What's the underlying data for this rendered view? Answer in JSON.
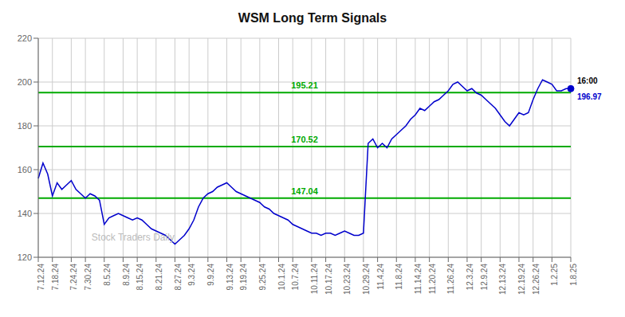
{
  "chart_data": {
    "type": "line",
    "title": "WSM Long Term Signals",
    "categories": [
      "7.12.24",
      null,
      null,
      "7.18.24",
      null,
      null,
      null,
      "7.24.24",
      null,
      null,
      "7.30.24",
      null,
      null,
      null,
      "8.5.24",
      null,
      null,
      null,
      "8.9.24",
      null,
      null,
      "8.15.24",
      null,
      null,
      null,
      "8.21.24",
      null,
      null,
      null,
      "8.27.24",
      null,
      null,
      "9.3.24",
      null,
      null,
      null,
      "9.9.24",
      null,
      null,
      null,
      "9.13.24",
      null,
      null,
      "9.19.24",
      null,
      null,
      null,
      "9.25.24",
      null,
      null,
      null,
      "10.1.24",
      null,
      null,
      "10.7.24",
      null,
      null,
      null,
      "10.11.24",
      null,
      null,
      "10.17.24",
      null,
      null,
      null,
      "10.23.24",
      null,
      null,
      null,
      "10.29.24",
      null,
      null,
      "11.4.24",
      null,
      null,
      null,
      "11.8.24",
      null,
      null,
      null,
      "11.14.24",
      null,
      null,
      "11.20.24",
      null,
      null,
      null,
      "11.26.24",
      null,
      null,
      null,
      "12.3.24",
      null,
      null,
      "12.9.24",
      null,
      null,
      null,
      "12.13.24",
      null,
      null,
      null,
      "12.19.24",
      null,
      null,
      "12.26.24",
      null,
      null,
      null,
      "1.2.25",
      null,
      null,
      null,
      "1.8.25"
    ],
    "series": [
      {
        "name": "WSM",
        "color": "#0000cc",
        "values": [
          156,
          163,
          158,
          148,
          154,
          151,
          153,
          155,
          151,
          149,
          147,
          149,
          148,
          146,
          135,
          138,
          139,
          140,
          139,
          138,
          137,
          138,
          137,
          135,
          133,
          132,
          131,
          130,
          128,
          126,
          128,
          130,
          133,
          137,
          143,
          147,
          149,
          150,
          152,
          153,
          154,
          152,
          150,
          149,
          148,
          147,
          146,
          145,
          143,
          142,
          140,
          139,
          138,
          137,
          135,
          134,
          133,
          132,
          131,
          131,
          130,
          131,
          131,
          130,
          131,
          132,
          131,
          130,
          130,
          131,
          172,
          174,
          170,
          172,
          170,
          174,
          176,
          178,
          180,
          183,
          185,
          188,
          187,
          189,
          191,
          192,
          194,
          196,
          199,
          200,
          198,
          196,
          197,
          195,
          194,
          192,
          190,
          188,
          185,
          182,
          180,
          183,
          186,
          185,
          186,
          192,
          197,
          201,
          200,
          199,
          196,
          196,
          197,
          196.97
        ]
      }
    ],
    "hlines": [
      {
        "value": 195.21,
        "color": "#00aa00"
      },
      {
        "value": 170.52,
        "color": "#00aa00"
      },
      {
        "value": 147.04,
        "color": "#00aa00"
      }
    ],
    "annotations": [
      {
        "text": "Stock Traders Daily",
        "color": "#bbbbbb"
      },
      {
        "text": "16:00",
        "x": 113,
        "y": 196.97,
        "color": "#000000"
      },
      {
        "text": "196.97",
        "x": 113,
        "y": 196.97,
        "color": "#0000cc"
      }
    ],
    "ylim": [
      120,
      220
    ],
    "yticks": [
      120,
      140,
      160,
      180,
      200,
      220
    ],
    "grid": true
  }
}
